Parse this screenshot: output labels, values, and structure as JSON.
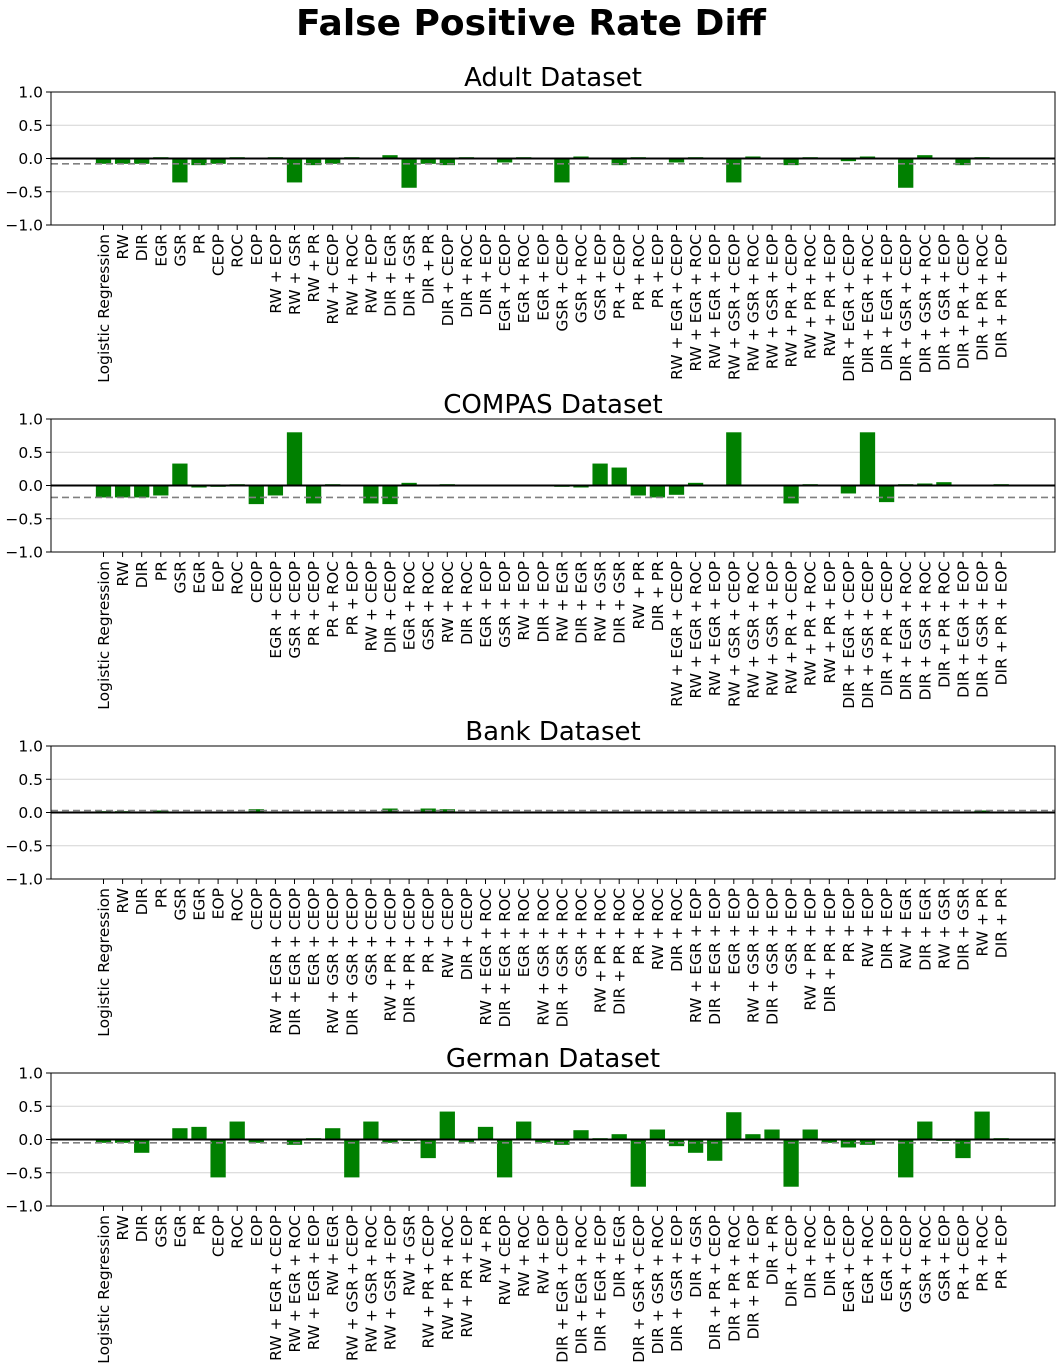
{
  "title": "False Positive Rate Diff",
  "colors": {
    "bar": "#008000",
    "zero_line": "#000000",
    "ref_line": "#808080",
    "grid": "#d3d3d3"
  },
  "chart_data": [
    {
      "type": "bar",
      "title": "Adult Dataset",
      "ylim": [
        -1.0,
        1.0
      ],
      "yticks": [
        "1.0",
        "0.5",
        "0.0",
        "−0.5",
        "−1.0"
      ],
      "ytick_values": [
        1.0,
        0.5,
        0.0,
        -0.5,
        -1.0
      ],
      "grid": "horizontal",
      "reference_line": -0.08,
      "categories": [
        "Logistic Regression",
        "RW",
        "DIR",
        "EGR",
        "GSR",
        "PR",
        "CEOP",
        "ROC",
        "EOP",
        "RW + EOP",
        "RW + GSR",
        "RW + PR",
        "RW + CEOP",
        "RW + ROC",
        "RW + EOP",
        "DIR + EGR",
        "DIR + GSR",
        "DIR + PR",
        "DIR + CEOP",
        "DIR + ROC",
        "DIR + EOP",
        "EGR + CEOP",
        "EGR + ROC",
        "EGR + EOP",
        "GSR + CEOP",
        "GSR + ROC",
        "GSR + EOP",
        "PR + CEOP",
        "PR + ROC",
        "PR + EOP",
        "RW + EGR + CEOP",
        "RW + EGR + ROC",
        "RW + EGR + EOP",
        "RW + GSR + CEOP",
        "RW + GSR + ROC",
        "RW + GSR + EOP",
        "RW + PR + CEOP",
        "RW + PR + ROC",
        "RW + PR + EOP",
        "DIR + EGR + CEOP",
        "DIR + EGR + ROC",
        "DIR + EGR + EOP",
        "DIR + GSR + CEOP",
        "DIR + GSR + ROC",
        "DIR + GSR + EOP",
        "DIR + PR + CEOP",
        "DIR + PR + ROC",
        "DIR + PR + EOP"
      ],
      "values": [
        -0.08,
        -0.08,
        -0.08,
        0.02,
        -0.36,
        -0.1,
        -0.08,
        0.02,
        0.0,
        0.02,
        -0.36,
        -0.1,
        -0.08,
        0.02,
        0.0,
        0.05,
        -0.44,
        -0.08,
        -0.1,
        0.02,
        0.0,
        -0.06,
        0.02,
        0.0,
        -0.36,
        0.03,
        0.0,
        -0.1,
        0.02,
        0.0,
        -0.06,
        0.02,
        0.0,
        -0.36,
        0.03,
        0.0,
        -0.1,
        0.02,
        0.0,
        -0.04,
        0.03,
        0.0,
        -0.44,
        0.05,
        0.0,
        -0.1,
        0.02,
        0.0
      ]
    },
    {
      "type": "bar",
      "title": "COMPAS Dataset",
      "ylim": [
        -1.0,
        1.0
      ],
      "yticks": [
        "1.0",
        "0.5",
        "0.0",
        "−0.5",
        "−1.0"
      ],
      "ytick_values": [
        1.0,
        0.5,
        0.0,
        -0.5,
        -1.0
      ],
      "grid": "horizontal",
      "reference_line": -0.18,
      "categories": [
        "Logistic Regression",
        "RW",
        "DIR",
        "PR",
        "GSR",
        "EGR",
        "EOP",
        "ROC",
        "CEOP",
        "EGR + CEOP",
        "GSR + CEOP",
        "PR + CEOP",
        "PR + ROC",
        "PR + EOP",
        "RW + CEOP",
        "DIR + CEOP",
        "EGR + ROC",
        "GSR + ROC",
        "RW + ROC",
        "DIR + ROC",
        "EGR + EOP",
        "GSR + EOP",
        "RW + EOP",
        "DIR + EOP",
        "RW + EGR",
        "DIR + EGR",
        "RW + GSR",
        "DIR + GSR",
        "RW + PR",
        "DIR + PR",
        "RW + EGR + CEOP",
        "RW + EGR + ROC",
        "RW + EGR + EOP",
        "RW + GSR + CEOP",
        "RW + GSR + ROC",
        "RW + GSR + EOP",
        "RW + PR + CEOP",
        "RW + PR + ROC",
        "RW + PR + EOP",
        "DIR + EGR + CEOP",
        "DIR + GSR + CEOP",
        "DIR + PR + CEOP",
        "DIR + EGR + ROC",
        "DIR + GSR + ROC",
        "DIR + PR + ROC",
        "DIR + EGR + EOP",
        "DIR + GSR + EOP",
        "DIR + PR + EOP"
      ],
      "values": [
        -0.18,
        -0.18,
        -0.18,
        -0.15,
        0.33,
        -0.03,
        -0.02,
        0.02,
        -0.28,
        -0.15,
        0.8,
        -0.27,
        0.02,
        0.0,
        -0.27,
        -0.28,
        0.04,
        0.0,
        0.02,
        0.0,
        -0.01,
        0.0,
        -0.01,
        0.0,
        -0.02,
        -0.03,
        0.33,
        0.27,
        -0.15,
        -0.18,
        -0.14,
        0.04,
        0.0,
        0.8,
        0.0,
        -0.01,
        -0.27,
        0.02,
        0.0,
        -0.12,
        0.8,
        -0.25,
        0.02,
        0.03,
        0.05,
        0.0,
        0.01,
        0.02
      ]
    },
    {
      "type": "bar",
      "title": "Bank Dataset",
      "ylim": [
        -1.0,
        1.0
      ],
      "yticks": [
        "1.0",
        "0.5",
        "0.0",
        "−0.5",
        "−1.0"
      ],
      "ytick_values": [
        1.0,
        0.5,
        0.0,
        -0.5,
        -1.0
      ],
      "grid": "horizontal",
      "reference_line": 0.03,
      "categories": [
        "Logistic Regression",
        "RW",
        "DIR",
        "PR",
        "GSR",
        "EGR",
        "EOP",
        "ROC",
        "CEOP",
        "RW + EGR + CEOP",
        "DIR + EGR + CEOP",
        "EGR + CEOP",
        "RW + GSR + CEOP",
        "DIR + GSR + CEOP",
        "GSR + CEOP",
        "RW + PR + CEOP",
        "DIR + PR + CEOP",
        "PR + CEOP",
        "RW + CEOP",
        "DIR + CEOP",
        "RW + EGR + ROC",
        "DIR + EGR + ROC",
        "EGR + ROC",
        "RW + GSR + ROC",
        "DIR + GSR + ROC",
        "GSR + ROC",
        "RW + PR + ROC",
        "DIR + PR + ROC",
        "PR + ROC",
        "RW + ROC",
        "DIR + ROC",
        "RW + EGR + EOP",
        "DIR + EGR + EOP",
        "EGR + EOP",
        "RW + GSR + EOP",
        "DIR + GSR + EOP",
        "GSR + EOP",
        "RW + PR + EOP",
        "DIR + PR + EOP",
        "PR + EOP",
        "RW + EOP",
        "DIR + EOP",
        "RW + EGR",
        "DIR + EGR",
        "RW + GSR",
        "DIR + GSR",
        "RW + PR",
        "DIR + PR"
      ],
      "values": [
        0.02,
        0.02,
        0.01,
        0.03,
        0.01,
        0.01,
        0.0,
        0.0,
        0.05,
        0.01,
        0.01,
        0.01,
        0.01,
        0.01,
        0.01,
        0.06,
        0.01,
        0.06,
        0.05,
        0.01,
        0.0,
        0.0,
        0.0,
        0.01,
        0.0,
        0.0,
        0.01,
        0.0,
        0.0,
        0.0,
        0.0,
        0.0,
        0.0,
        0.0,
        0.0,
        0.0,
        0.0,
        0.0,
        0.0,
        0.0,
        0.0,
        0.0,
        0.01,
        0.0,
        0.01,
        0.0,
        0.03,
        0.01
      ]
    },
    {
      "type": "bar",
      "title": "German Dataset",
      "ylim": [
        -1.0,
        1.0
      ],
      "yticks": [
        "1.0",
        "0.5",
        "0.0",
        "−0.5",
        "−1.0"
      ],
      "ytick_values": [
        1.0,
        0.5,
        0.0,
        -0.5,
        -1.0
      ],
      "grid": "horizontal",
      "reference_line": -0.05,
      "categories": [
        "Logistic Regression",
        "RW",
        "DIR",
        "GSR",
        "EGR",
        "PR",
        "CEOP",
        "ROC",
        "EOP",
        "RW + EGR + CEOP",
        "RW + EGR + ROC",
        "RW + EGR + EOP",
        "RW + EGR",
        "RW + GSR + CEOP",
        "RW + GSR + ROC",
        "RW + GSR + EOP",
        "RW + GSR",
        "RW + PR + CEOP",
        "RW + PR + ROC",
        "RW + PR + EOP",
        "RW + PR",
        "RW + CEOP",
        "RW + ROC",
        "RW + EOP",
        "DIR + EGR + CEOP",
        "DIR + EGR + ROC",
        "DIR + EGR + EOP",
        "DIR + EGR",
        "DIR + GSR + CEOP",
        "DIR + GSR + ROC",
        "DIR + GSR + EOP",
        "DIR + GSR",
        "DIR + PR + CEOP",
        "DIR + PR + ROC",
        "DIR + PR + EOP",
        "DIR + PR",
        "DIR + CEOP",
        "DIR + ROC",
        "DIR + EOP",
        "EGR + CEOP",
        "EGR + ROC",
        "EGR + EOP",
        "GSR + CEOP",
        "GSR + ROC",
        "GSR + EOP",
        "PR + CEOP",
        "PR + ROC",
        "PR + EOP"
      ],
      "values": [
        -0.05,
        -0.05,
        -0.2,
        0.0,
        0.17,
        0.19,
        -0.57,
        0.27,
        -0.05,
        0.0,
        -0.08,
        0.02,
        0.17,
        -0.57,
        0.27,
        -0.05,
        -0.02,
        -0.28,
        0.42,
        -0.04,
        0.19,
        -0.57,
        0.27,
        -0.05,
        -0.08,
        0.14,
        0.02,
        0.08,
        -0.71,
        0.15,
        -0.1,
        -0.2,
        -0.32,
        0.41,
        0.08,
        0.15,
        -0.71,
        0.15,
        -0.05,
        -0.12,
        -0.08,
        0.0,
        -0.57,
        0.27,
        -0.02,
        -0.28,
        0.42,
        0.02
      ]
    }
  ]
}
